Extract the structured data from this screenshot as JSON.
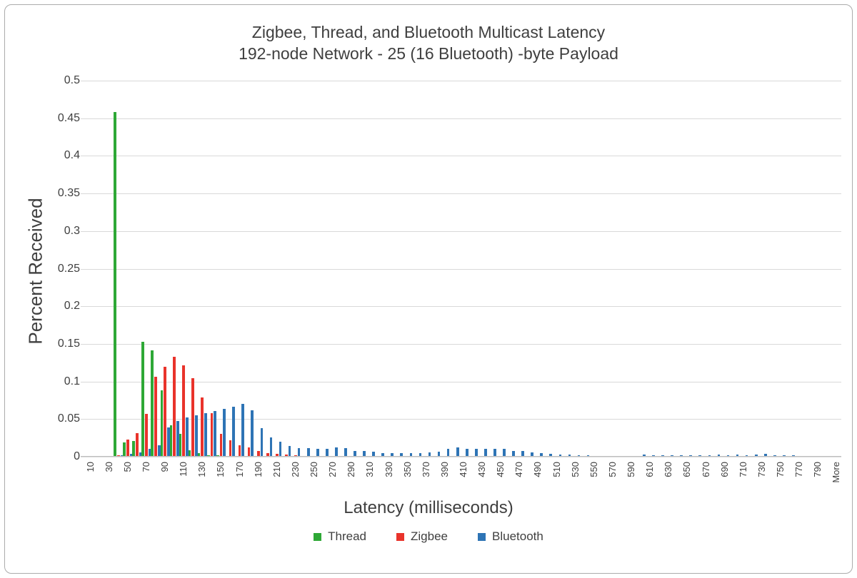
{
  "figure": {
    "title_line1": "Zigbee, Thread, and Bluetooth Multicast Latency",
    "title_line2": "192-node Network - 25 (16 Bluetooth) -byte Payload",
    "x_axis_title": "Latency (milliseconds)",
    "y_axis_title": "Percent Received"
  },
  "colors": {
    "thread_green": "#2ea836",
    "zigbee_red": "#e9332b",
    "bluetooth_blue": "#2e74b5",
    "gridline": "#d9d9d9",
    "axis_line": "#bfbfbf",
    "text": "#3f3f3f",
    "border": "#ababab"
  },
  "chart_data": {
    "type": "bar",
    "title": "Zigbee, Thread, and Bluetooth Multicast Latency",
    "subtitle": "192-node Network - 25 (16 Bluetooth) -byte Payload",
    "xlabel": "Latency (milliseconds)",
    "ylabel": "Percent Received",
    "ylim": [
      0,
      0.5
    ],
    "ytick_labels": [
      "0.5",
      "0.45",
      "0.4",
      "0.35",
      "0.3",
      "0.25",
      "0.2",
      "0.15",
      "0.1",
      "0.05",
      "0"
    ],
    "grid": true,
    "legend_position": "bottom",
    "bin_width_ms": 10,
    "xtick_labels_shown": [
      "10",
      "30",
      "50",
      "70",
      "90",
      "110",
      "130",
      "150",
      "170",
      "190",
      "210",
      "230",
      "250",
      "270",
      "290",
      "310",
      "330",
      "350",
      "370",
      "390",
      "410",
      "430",
      "450",
      "470",
      "490",
      "510",
      "530",
      "550",
      "570",
      "590",
      "610",
      "630",
      "650",
      "670",
      "690",
      "710",
      "730",
      "750",
      "770",
      "790",
      "More"
    ],
    "categories": [
      "10",
      "20",
      "30",
      "40",
      "50",
      "60",
      "70",
      "80",
      "90",
      "100",
      "110",
      "120",
      "130",
      "140",
      "150",
      "160",
      "170",
      "180",
      "190",
      "200",
      "210",
      "220",
      "230",
      "240",
      "250",
      "260",
      "270",
      "280",
      "290",
      "300",
      "310",
      "320",
      "330",
      "340",
      "350",
      "360",
      "370",
      "380",
      "390",
      "400",
      "410",
      "420",
      "430",
      "440",
      "450",
      "460",
      "470",
      "480",
      "490",
      "500",
      "510",
      "520",
      "530",
      "540",
      "550",
      "560",
      "570",
      "580",
      "590",
      "600",
      "610",
      "620",
      "630",
      "640",
      "650",
      "660",
      "670",
      "680",
      "690",
      "700",
      "710",
      "720",
      "730",
      "740",
      "750",
      "760",
      "770",
      "780",
      "790",
      "800",
      "More"
    ],
    "series": [
      {
        "name": "Thread",
        "color": "#2ea836",
        "values": [
          0,
          0,
          0,
          0.458,
          0.019,
          0.021,
          0.153,
          0.141,
          0.088,
          0.042,
          0.03,
          0.009,
          0.005,
          0.002,
          0.002,
          0.001,
          0,
          0,
          0,
          0,
          0,
          0,
          0,
          0,
          0,
          0,
          0,
          0,
          0,
          0,
          0,
          0,
          0,
          0,
          0,
          0,
          0,
          0,
          0,
          0,
          0,
          0,
          0,
          0,
          0,
          0,
          0,
          0,
          0,
          0,
          0,
          0,
          0,
          0,
          0,
          0,
          0,
          0,
          0,
          0,
          0,
          0,
          0,
          0,
          0,
          0,
          0,
          0,
          0,
          0,
          0,
          0,
          0,
          0,
          0,
          0,
          0,
          0,
          0,
          0,
          0
        ]
      },
      {
        "name": "Zigbee",
        "color": "#e9332b",
        "values": [
          0,
          0,
          0,
          0.002,
          0.023,
          0.031,
          0.057,
          0.106,
          0.12,
          0.133,
          0.121,
          0.104,
          0.079,
          0.058,
          0.03,
          0.022,
          0.015,
          0.012,
          0.008,
          0.005,
          0.004,
          0.003,
          0.002,
          0.001,
          0.001,
          0,
          0,
          0,
          0,
          0,
          0,
          0,
          0,
          0,
          0,
          0,
          0,
          0,
          0,
          0,
          0,
          0,
          0,
          0,
          0,
          0,
          0,
          0,
          0,
          0,
          0,
          0,
          0,
          0,
          0,
          0,
          0,
          0,
          0,
          0,
          0,
          0,
          0,
          0,
          0,
          0,
          0,
          0,
          0,
          0,
          0,
          0,
          0,
          0,
          0,
          0,
          0,
          0,
          0,
          0,
          0
        ]
      },
      {
        "name": "Bluetooth",
        "color": "#2e74b5",
        "values": [
          0,
          0,
          0,
          0.002,
          0.004,
          0.006,
          0.01,
          0.015,
          0.039,
          0.047,
          0.052,
          0.055,
          0.058,
          0.061,
          0.064,
          0.066,
          0.07,
          0.062,
          0.038,
          0.026,
          0.02,
          0.014,
          0.011,
          0.011,
          0.01,
          0.01,
          0.012,
          0.011,
          0.008,
          0.008,
          0.007,
          0.005,
          0.005,
          0.005,
          0.005,
          0.005,
          0.006,
          0.007,
          0.01,
          0.012,
          0.01,
          0.01,
          0.01,
          0.01,
          0.01,
          0.008,
          0.008,
          0.006,
          0.005,
          0.004,
          0.003,
          0.003,
          0.002,
          0.002,
          0.001,
          0.001,
          0.001,
          0.001,
          0.001,
          0.003,
          0.002,
          0.002,
          0.002,
          0.002,
          0.002,
          0.002,
          0.002,
          0.003,
          0.002,
          0.003,
          0.002,
          0.003,
          0.004,
          0.002,
          0.002,
          0.002,
          0.001,
          0,
          0,
          0,
          0
        ]
      }
    ]
  }
}
